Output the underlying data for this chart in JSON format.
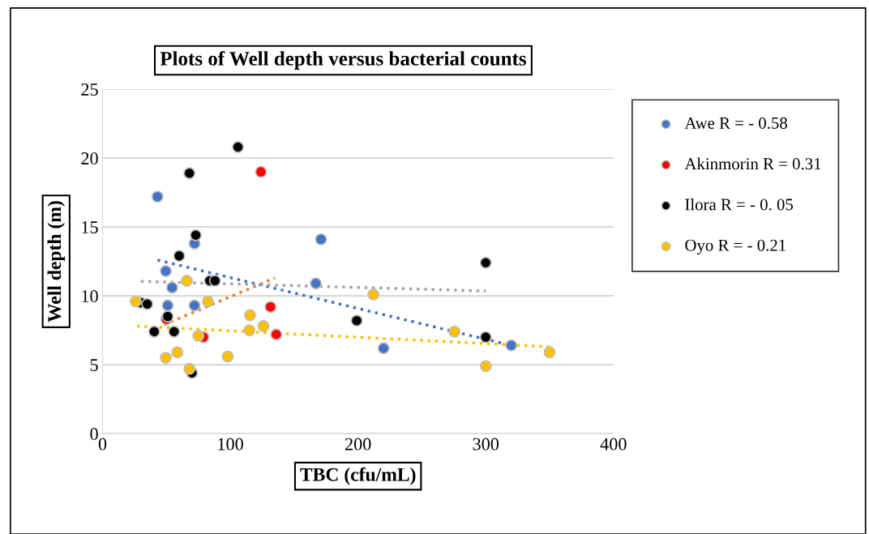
{
  "chart_data": {
    "type": "scatter",
    "title": "Plots of Well depth versus bacterial counts",
    "xlabel": "TBC (cfu/mL)",
    "ylabel": "Well depth (m)",
    "xlim": [
      0,
      400
    ],
    "xticks": [
      0,
      100,
      200,
      300,
      400
    ],
    "ylim": [
      0,
      25
    ],
    "yticks": [
      0,
      5,
      10,
      15,
      20,
      25
    ],
    "grid": "y",
    "legend": "right",
    "marker": "circle",
    "series": [
      {
        "name": "Awe R = - 0.58",
        "color": "#4472c4",
        "x": [
          43,
          49.5,
          54.5,
          51,
          72,
          72,
          171,
          167,
          220,
          320
        ],
        "values": [
          17.2,
          11.8,
          10.6,
          9.3,
          13.8,
          9.3,
          14.1,
          10.9,
          6.2,
          6.4
        ]
      },
      {
        "name": "Akinmorin R = 0.31",
        "color": "#ff0000",
        "x": [
          50,
          124,
          79,
          131.5,
          136
        ],
        "values": [
          8.3,
          19,
          7,
          9.2,
          7.2
        ]
      },
      {
        "name": "Ilora R = - 0. 05",
        "color": "#000000",
        "x": [
          106,
          68,
          73,
          60,
          84,
          88,
          30,
          35,
          51,
          40.5,
          56,
          70,
          199,
          300,
          300
        ],
        "values": [
          20.8,
          18.9,
          14.4,
          12.9,
          11.1,
          11.1,
          9.5,
          9.4,
          8.5,
          7.4,
          7.4,
          4.4,
          8.2,
          12.4,
          7
        ]
      },
      {
        "name": "Oyo R = - 0.21",
        "color": "#ffc000",
        "x": [
          26,
          66,
          82.5,
          49.5,
          58.5,
          68,
          75,
          98,
          115.5,
          115,
          126,
          212,
          275.5,
          300,
          350
        ],
        "values": [
          9.6,
          11.1,
          9.6,
          5.5,
          5.9,
          4.7,
          7.1,
          5.6,
          8.6,
          7.5,
          7.8,
          10.1,
          7.4,
          4.9,
          5.9
        ]
      },
      {
        "type": "line",
        "color": "#4472c4",
        "marker": "none",
        "line_style": "dotted",
        "x": [
          43,
          320
        ],
        "values": [
          12.6,
          6.4
        ]
      },
      {
        "type": "line",
        "color": "#ed7d31",
        "marker": "none",
        "line_style": "dotted",
        "x": [
          48,
          135
        ],
        "values": [
          7.9,
          11.3
        ]
      },
      {
        "type": "line",
        "color": "#a5a5a5",
        "marker": "none",
        "line_style": "dotted",
        "x": [
          30,
          300
        ],
        "values": [
          11.05,
          10.35
        ]
      },
      {
        "type": "line",
        "color": "#ffc000",
        "marker": "none",
        "line_style": "dotted",
        "x": [
          27,
          350
        ],
        "values": [
          7.8,
          6.3
        ]
      }
    ]
  }
}
